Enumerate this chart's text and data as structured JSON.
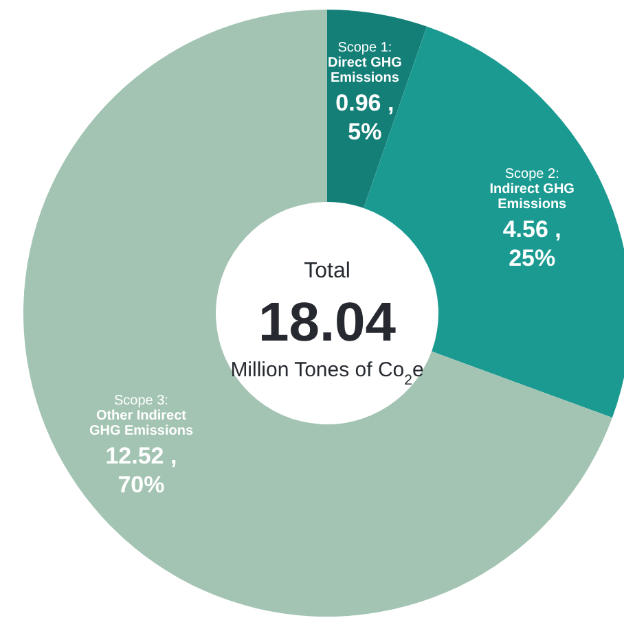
{
  "chart_data": {
    "type": "donut",
    "categories": [
      "Scope 1: Direct GHG Emissions",
      "Scope 2: Indirect GHG Emissions",
      "Scope 3: Other Indirect GHG Emissions"
    ],
    "values": [
      0.96,
      4.56,
      12.52
    ],
    "colors": [
      "#137f77",
      "#1b9a91",
      "#a3c4b2"
    ],
    "value_labels": [
      "0.96 , 5%",
      "4.56 , 25%",
      "12.52 , 70%"
    ],
    "annotations": [
      "Total",
      "18.04",
      "Million Tones of Co$_{2}$e"
    ]
  }
}
